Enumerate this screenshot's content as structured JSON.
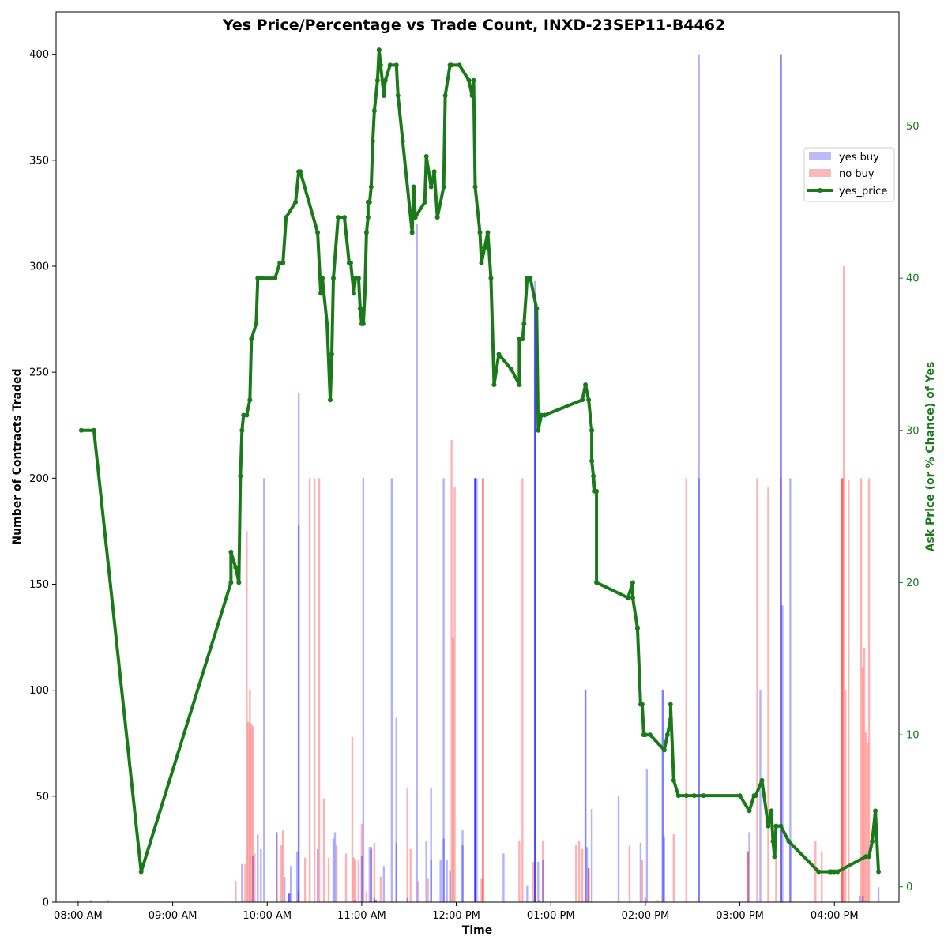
{
  "chart_data": {
    "type": "bar+line",
    "title": "Yes Price/Percentage vs Trade Count, INXD-23SEP11-B4462",
    "xlabel": "Time",
    "ylabel_left": "Number of Contracts Traded",
    "ylabel_right": "Ask Price (or % Chance) of Yes",
    "x_ticks": [
      "08:00 AM",
      "09:00 AM",
      "10:00 AM",
      "11:00 AM",
      "12:00 PM",
      "01:00 PM",
      "02:00 PM",
      "03:00 PM",
      "04:00 PM"
    ],
    "y_left_ticks": [
      0,
      50,
      100,
      150,
      200,
      250,
      300,
      350,
      400
    ],
    "y_right_ticks": [
      0,
      10,
      20,
      30,
      40,
      50
    ],
    "y_left_range": [
      0,
      420
    ],
    "y_right_range": [
      -1,
      57.5
    ],
    "x_range_minutes": [
      466,
      1001
    ],
    "legend": {
      "position": "right-upper",
      "items": [
        {
          "label": "yes buy",
          "color": "#bbbbf5"
        },
        {
          "label": "no buy",
          "color": "#f5bbbb"
        },
        {
          "label": "yes_price",
          "color": "#1a7a1a"
        }
      ]
    },
    "colors": {
      "yes_buy": "#0000ff",
      "no_buy": "#ff0000",
      "yes_price": "#1a7a1a"
    },
    "yes_buy_bars": [
      [
        488,
        1,
        0.3
      ],
      [
        584,
        18,
        0.3
      ],
      [
        591,
        22,
        0.3
      ],
      [
        594,
        32,
        0.3
      ],
      [
        596,
        25,
        0.3
      ],
      [
        598,
        200,
        0.3
      ],
      [
        606,
        33,
        0.3
      ],
      [
        611,
        12,
        0.3
      ],
      [
        614,
        4,
        0.6
      ],
      [
        615,
        17,
        0.3
      ],
      [
        619,
        24,
        0.3
      ],
      [
        620,
        240,
        0.3
      ],
      [
        620,
        178,
        0.3
      ],
      [
        632,
        25,
        0.3
      ],
      [
        642,
        30,
        0.3
      ],
      [
        643,
        33,
        0.3
      ],
      [
        656,
        1,
        0.3
      ],
      [
        660,
        22,
        0.3
      ],
      [
        661,
        200,
        0.3
      ],
      [
        665,
        26,
        0.3
      ],
      [
        666,
        26,
        0.3
      ],
      [
        668,
        2,
        0.3
      ],
      [
        669,
        1,
        0.6
      ],
      [
        674,
        17,
        0.3
      ],
      [
        679,
        200,
        0.3
      ],
      [
        682,
        87,
        0.3
      ],
      [
        682,
        28,
        0.3
      ],
      [
        689,
        2,
        0.3
      ],
      [
        695,
        320,
        0.3
      ],
      [
        701,
        29,
        0.3
      ],
      [
        704,
        54,
        0.3
      ],
      [
        704,
        20,
        0.3
      ],
      [
        710,
        20,
        0.3
      ],
      [
        712,
        200,
        0.3
      ],
      [
        712,
        30,
        0.3
      ],
      [
        714,
        20,
        0.3
      ],
      [
        716,
        15,
        0.3
      ],
      [
        724,
        34,
        0.3
      ],
      [
        724,
        27,
        0.3
      ],
      [
        732,
        200,
        0.8
      ],
      [
        733,
        200,
        0.3
      ],
      [
        750,
        23,
        0.3
      ],
      [
        765,
        8,
        0.3
      ],
      [
        770,
        293,
        0.3
      ],
      [
        770,
        287,
        0.6
      ],
      [
        772,
        19,
        0.3
      ],
      [
        773,
        1,
        0.3
      ],
      [
        775,
        20,
        0.3
      ],
      [
        802,
        100,
        0.5
      ],
      [
        803,
        26,
        0.3
      ],
      [
        806,
        44,
        0.3
      ],
      [
        823,
        50,
        0.3
      ],
      [
        837,
        28,
        0.3
      ],
      [
        841,
        63,
        0.3
      ],
      [
        840,
        2,
        0.3
      ],
      [
        851,
        100,
        0.5
      ],
      [
        852,
        31,
        0.3
      ],
      [
        874,
        200,
        0.3
      ],
      [
        874,
        400,
        0.3
      ],
      [
        906,
        33,
        0.3
      ],
      [
        913,
        100,
        0.3
      ],
      [
        926,
        400,
        0.6
      ],
      [
        927,
        140,
        0.3
      ],
      [
        932,
        200,
        0.3
      ],
      [
        932,
        28,
        0.3
      ],
      [
        976,
        3,
        0.3
      ],
      [
        978,
        3,
        0.3
      ],
      [
        988,
        7,
        0.3
      ]
    ],
    "no_buy_bars": [
      [
        480,
        1,
        0.3
      ],
      [
        499,
        1,
        0.3
      ],
      [
        580,
        10,
        0.3
      ],
      [
        586,
        18,
        0.3
      ],
      [
        587,
        175,
        0.3
      ],
      [
        588,
        85,
        0.3
      ],
      [
        589,
        100,
        0.3
      ],
      [
        590,
        84,
        0.3
      ],
      [
        591,
        83,
        0.3
      ],
      [
        592,
        23,
        0.3
      ],
      [
        606,
        33,
        0.3
      ],
      [
        609,
        27,
        0.3
      ],
      [
        610,
        34,
        0.3
      ],
      [
        620,
        5,
        0.3
      ],
      [
        624,
        21,
        0.3
      ],
      [
        627,
        200,
        0.3
      ],
      [
        630,
        200,
        0.3
      ],
      [
        633,
        200,
        0.3
      ],
      [
        636,
        49,
        0.3
      ],
      [
        639,
        21,
        0.3
      ],
      [
        644,
        27,
        0.3
      ],
      [
        650,
        23,
        0.3
      ],
      [
        654,
        78,
        0.3
      ],
      [
        655,
        21,
        0.3
      ],
      [
        656,
        20,
        0.3
      ],
      [
        658,
        20,
        0.3
      ],
      [
        660,
        37,
        0.3
      ],
      [
        663,
        5,
        0.3
      ],
      [
        666,
        25,
        0.3
      ],
      [
        668,
        28,
        0.3
      ],
      [
        672,
        12,
        0.3
      ],
      [
        689,
        54,
        0.3
      ],
      [
        691,
        25,
        0.3
      ],
      [
        696,
        10,
        0.3
      ],
      [
        702,
        11,
        0.3
      ],
      [
        717,
        218,
        0.3
      ],
      [
        718,
        125,
        0.3
      ],
      [
        719,
        196,
        0.3
      ],
      [
        736,
        11,
        0.3
      ],
      [
        737,
        200,
        0.6
      ],
      [
        760,
        29,
        0.3
      ],
      [
        762,
        200,
        0.3
      ],
      [
        769,
        19,
        0.3
      ],
      [
        775,
        29,
        0.3
      ],
      [
        796,
        27,
        0.3
      ],
      [
        798,
        29,
        0.3
      ],
      [
        800,
        25,
        0.3
      ],
      [
        804,
        16,
        0.6
      ],
      [
        830,
        27,
        0.3
      ],
      [
        838,
        20,
        0.3
      ],
      [
        848,
        1,
        0.3
      ],
      [
        858,
        32,
        0.3
      ],
      [
        866,
        200,
        0.3
      ],
      [
        905,
        24,
        0.6
      ],
      [
        911,
        200,
        0.3
      ],
      [
        918,
        196,
        0.3
      ],
      [
        923,
        27,
        0.3
      ],
      [
        926,
        200,
        0.3
      ],
      [
        948,
        29,
        0.3
      ],
      [
        952,
        24,
        0.3
      ],
      [
        966,
        300,
        0.3
      ],
      [
        965,
        200,
        0.6
      ],
      [
        967,
        100,
        0.3
      ],
      [
        969,
        199,
        0.3
      ],
      [
        977,
        200,
        0.3
      ],
      [
        978,
        111,
        0.3
      ],
      [
        979,
        120,
        0.3
      ],
      [
        980,
        80,
        0.3
      ],
      [
        981,
        75,
        0.3
      ],
      [
        982,
        200,
        0.3
      ]
    ],
    "yes_price_line": {
      "x": [
        482,
        490,
        520,
        577,
        577,
        580,
        582,
        583,
        584,
        585,
        587,
        589,
        590,
        593,
        594,
        597,
        605,
        608,
        610,
        612,
        618,
        620,
        621,
        632,
        634,
        635,
        638,
        640,
        641,
        642,
        645,
        649,
        650,
        652,
        653,
        655,
        656,
        658,
        659,
        660,
        660,
        661,
        662,
        663,
        664,
        664,
        665,
        666,
        667,
        668,
        670,
        671,
        672,
        674,
        675,
        678,
        682,
        683,
        686,
        692,
        693,
        694,
        700,
        701,
        704,
        706,
        708,
        712,
        713,
        716,
        717,
        722,
        728,
        730,
        731,
        732,
        735,
        736,
        738,
        740,
        742,
        744,
        747,
        755,
        760,
        760,
        762,
        763,
        765,
        767,
        771,
        772,
        774,
        776,
        800,
        802,
        804,
        806,
        806,
        807,
        808,
        809,
        809,
        829,
        832,
        832,
        835,
        837,
        838,
        839,
        839,
        840,
        843,
        852,
        854,
        856,
        856,
        858,
        861,
        866,
        871,
        877,
        900,
        906,
        909,
        910,
        914,
        918,
        920,
        921,
        922,
        923,
        926,
        931,
        950,
        957,
        958,
        960,
        962,
        980,
        982,
        984,
        986,
        988
      ],
      "y": [
        30,
        30,
        1,
        20,
        22,
        21,
        20,
        27,
        30,
        31,
        31,
        32,
        36,
        37,
        40,
        40,
        40,
        41,
        41,
        44,
        45,
        47,
        47,
        43,
        39,
        40,
        37,
        32,
        35,
        40,
        44,
        44,
        43,
        41,
        41,
        39,
        40,
        40,
        38,
        37,
        38,
        37,
        39,
        43,
        44,
        45,
        45,
        46,
        49,
        51,
        53,
        55,
        54,
        52,
        53,
        54,
        54,
        52,
        49,
        43,
        46,
        44,
        45,
        48,
        46,
        47,
        44,
        46,
        52,
        54,
        54,
        54,
        53,
        52,
        53,
        46,
        43,
        41,
        42,
        43,
        40,
        33,
        35,
        34,
        33,
        36,
        36,
        37,
        40,
        40,
        38,
        30,
        31,
        31,
        32,
        33,
        32,
        30,
        28,
        27,
        26,
        26,
        20,
        19,
        20,
        19,
        17,
        12,
        12,
        10,
        10,
        10,
        10,
        9,
        10,
        11,
        12,
        7,
        6,
        6,
        6,
        6,
        6,
        5,
        6,
        6,
        7,
        4,
        5,
        3,
        2,
        4,
        4,
        3,
        1,
        1,
        1,
        1,
        1,
        2,
        2,
        3,
        5,
        1
      ]
    }
  }
}
